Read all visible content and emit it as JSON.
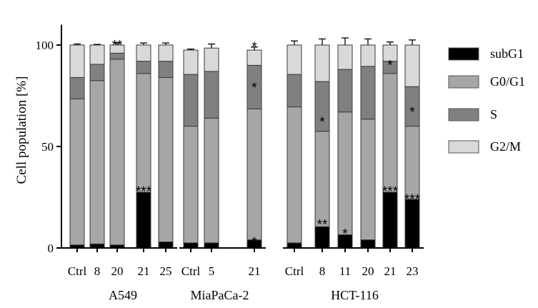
{
  "chart_data": {
    "type": "bar",
    "stacked": true,
    "ylabel": "Cell population [%]",
    "ylim": [
      0,
      110
    ],
    "yticks": [
      0,
      50,
      100
    ],
    "grid": false,
    "legend_position": "right",
    "groups": [
      {
        "name": "A549",
        "categories": [
          "Ctrl",
          "8",
          "20",
          "21",
          "25"
        ]
      },
      {
        "name": "MiaPaCa-2",
        "categories": [
          "Ctrl",
          "5",
          "21"
        ]
      },
      {
        "name": "HCT-116",
        "categories": [
          "Ctrl",
          "8",
          "11",
          "20",
          "21",
          "23"
        ]
      }
    ],
    "categories": [
      "Ctrl",
      "8",
      "20",
      "21",
      "25",
      "Ctrl",
      "5",
      "21",
      "Ctrl",
      "8",
      "11",
      "20",
      "21",
      "23"
    ],
    "series": [
      {
        "name": "subG1",
        "color": "#000000",
        "values": [
          1.5,
          2,
          1.5,
          27.5,
          3,
          2.5,
          2.5,
          4,
          2.5,
          10.5,
          6.5,
          4,
          27.5,
          24
        ],
        "errors": [
          0.3,
          0.3,
          0.3,
          1,
          0.3,
          0.5,
          0.3,
          0.5,
          0.3,
          1,
          1,
          1,
          0.5,
          0.5
        ]
      },
      {
        "name": "G0/G1",
        "color": "#a6a6a6",
        "values": [
          72,
          80.5,
          91.5,
          58.5,
          81,
          57.5,
          61.5,
          64.5,
          67,
          47,
          60.5,
          59.5,
          58.5,
          36
        ],
        "errors": [
          2,
          2,
          2,
          2,
          1.5,
          1,
          3,
          8,
          4,
          3,
          3,
          4,
          4,
          4
        ]
      },
      {
        "name": "S",
        "color": "#808080",
        "values": [
          10.5,
          8,
          3,
          6,
          8,
          25.5,
          23,
          21.5,
          16,
          24.5,
          21,
          26,
          6,
          19.5
        ],
        "errors": [
          2,
          2,
          2,
          2,
          1.5,
          1,
          1,
          1.5,
          3,
          1,
          1,
          1,
          2,
          2.5
        ]
      },
      {
        "name": "G2/M",
        "color": "#d9d9d9",
        "values": [
          16,
          9.5,
          4,
          8,
          8,
          12,
          11.5,
          7.5,
          14.5,
          18,
          12,
          10.5,
          8,
          20.5
        ],
        "errors": [
          0.5,
          0.3,
          1,
          1,
          1,
          0.5,
          2,
          1.5,
          2,
          3,
          3.5,
          3,
          1.5,
          2.5
        ]
      }
    ],
    "annotations": [
      {
        "text": "**",
        "category_index": 2,
        "value": 102
      },
      {
        "text": "***",
        "category_index": 3,
        "value": 30
      },
      {
        "text": "*",
        "category_index": 7,
        "value": 101
      },
      {
        "text": "*",
        "category_index": 7,
        "value": 81
      },
      {
        "text": "*",
        "category_index": 7,
        "value": 5
      },
      {
        "text": "*",
        "category_index": 9,
        "value": 64
      },
      {
        "text": "**",
        "category_index": 9,
        "value": 13.5
      },
      {
        "text": "*",
        "category_index": 10,
        "value": 9
      },
      {
        "text": "*",
        "category_index": 12,
        "value": 92
      },
      {
        "text": "***",
        "category_index": 12,
        "value": 30
      },
      {
        "text": "*",
        "category_index": 13,
        "value": 69
      },
      {
        "text": "***",
        "category_index": 13,
        "value": 26
      }
    ]
  }
}
